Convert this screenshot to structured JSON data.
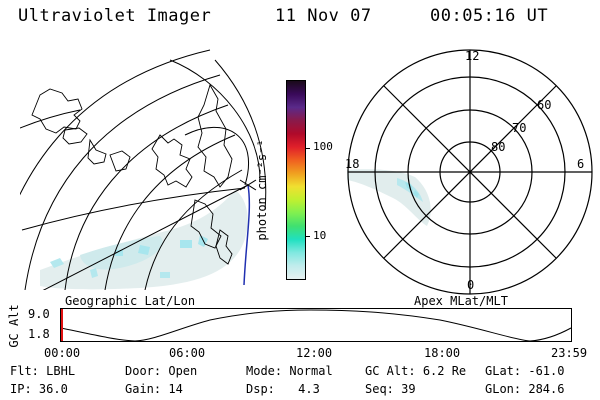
{
  "header": {
    "title": "Ultraviolet Imager",
    "date": "11 Nov 07",
    "time": "00:05:16 UT"
  },
  "colorbar": {
    "unit_label": "photon cm⁻²s⁻¹",
    "ticks": [
      "100",
      "10"
    ],
    "colors": [
      "#1a0a1a",
      "#3a0a5a",
      "#5a2a8a",
      "#8a1a4a",
      "#b00a2a",
      "#e0202a",
      "#f06020",
      "#f0a020",
      "#f0e030",
      "#c0f030",
      "#80f050",
      "#40e070",
      "#20e0c0",
      "#80e8e0",
      "#c0ecec",
      "#e6f0f0"
    ]
  },
  "geo_map": {
    "label": "Geographic Lat/Lon"
  },
  "polar_plot": {
    "label": "Apex MLat/MLT",
    "lat_labels": [
      "80",
      "70",
      "60"
    ],
    "mlt_labels": {
      "top": "12",
      "bottom": "0",
      "left": "18",
      "right": "6"
    }
  },
  "timeline": {
    "ylabel": "GC Alt",
    "yticks": [
      "9.0",
      "1.8"
    ],
    "xticks": [
      "00:00",
      "06:00",
      "12:00",
      "18:00",
      "23:59"
    ]
  },
  "info": {
    "row1": [
      {
        "label": "Flt:",
        "value": "LBHL"
      },
      {
        "label": "Door:",
        "value": "Open"
      },
      {
        "label": "Mode:",
        "value": "Normal"
      },
      {
        "label": "GC Alt:",
        "value": "6.2 Re"
      },
      {
        "label": "GLat:",
        "value": "-61.0"
      }
    ],
    "row2": [
      {
        "label": "IP:",
        "value": "36.0"
      },
      {
        "label": "Gain:",
        "value": "14"
      },
      {
        "label": "Dsp:",
        "value": "4.3"
      },
      {
        "label": "Seq:",
        "value": "39"
      },
      {
        "label": "GLon:",
        "value": "284.6"
      }
    ]
  }
}
